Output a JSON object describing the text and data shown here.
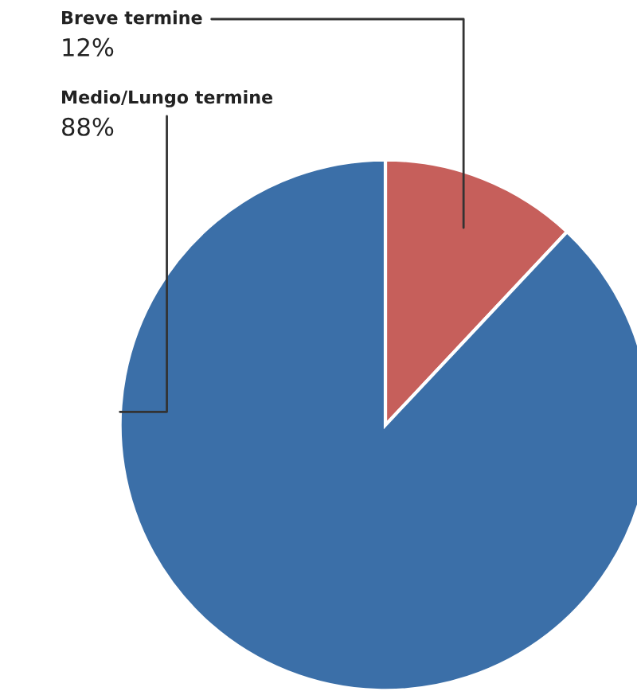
{
  "chart_data": {
    "type": "pie",
    "categories": [
      "Breve termine",
      "Medio/Lungo termine"
    ],
    "values": [
      12,
      88
    ],
    "value_labels": [
      "12%",
      "88%"
    ],
    "colors": [
      "#c65f5b",
      "#3b6fa8"
    ]
  }
}
